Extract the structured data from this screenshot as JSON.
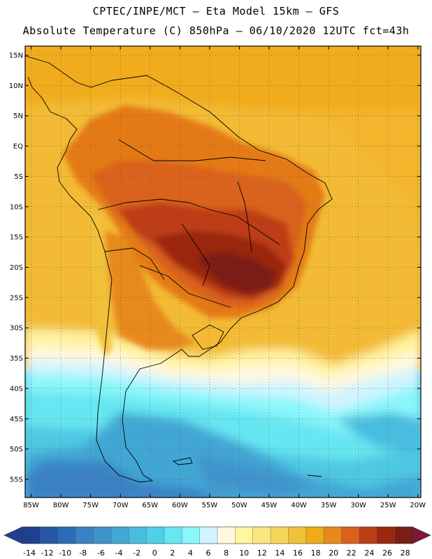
{
  "header": {
    "title_line1": "CPTEC/INPE/MCT –  Eta Model 15km – GFS",
    "title_line2": "Absolute Temperature (C) 850hPa – 06/10/2020 12UTC fct=43h"
  },
  "map": {
    "lat_labels": [
      "15N",
      "10N",
      "5N",
      "EQ",
      "5S",
      "10S",
      "15S",
      "20S",
      "25S",
      "30S",
      "35S",
      "40S",
      "45S",
      "50S",
      "55S"
    ],
    "lat_values": [
      15,
      10,
      5,
      0,
      -5,
      -10,
      -15,
      -20,
      -25,
      -30,
      -35,
      -40,
      -45,
      -50,
      -55
    ],
    "lon_labels": [
      "85W",
      "80W",
      "75W",
      "70W",
      "65W",
      "60W",
      "55W",
      "50W",
      "45W",
      "40W",
      "35W",
      "30W",
      "25W",
      "20W"
    ],
    "lon_values": [
      -85,
      -80,
      -75,
      -70,
      -65,
      -60,
      -55,
      -50,
      -45,
      -40,
      -35,
      -30,
      -25,
      -20
    ],
    "lat_range": [
      -58,
      16.5
    ],
    "lon_range": [
      -86,
      -19.5
    ]
  },
  "colorbar": {
    "labels": [
      "-14",
      "-12",
      "-10",
      "-8",
      "-6",
      "-4",
      "-2",
      "0",
      "2",
      "4",
      "6",
      "8",
      "10",
      "12",
      "14",
      "16",
      "18",
      "20",
      "22",
      "24",
      "26",
      "28"
    ],
    "colors": [
      "#1f3f8f",
      "#2458a6",
      "#2a6cb6",
      "#3b82c4",
      "#3f94cc",
      "#43a6d4",
      "#49bcdf",
      "#4fd0e6",
      "#66e6f0",
      "#8bf6fb",
      "#cff4ff",
      "#fff8e0",
      "#fff6a0",
      "#fbe680",
      "#f7d45a",
      "#f2c13a",
      "#edab14",
      "#e7891a",
      "#d9621a",
      "#bd3e14",
      "#9a2810",
      "#7b1e14"
    ],
    "under_color": "#1f3f8f",
    "over_color": "#7e1836"
  }
}
